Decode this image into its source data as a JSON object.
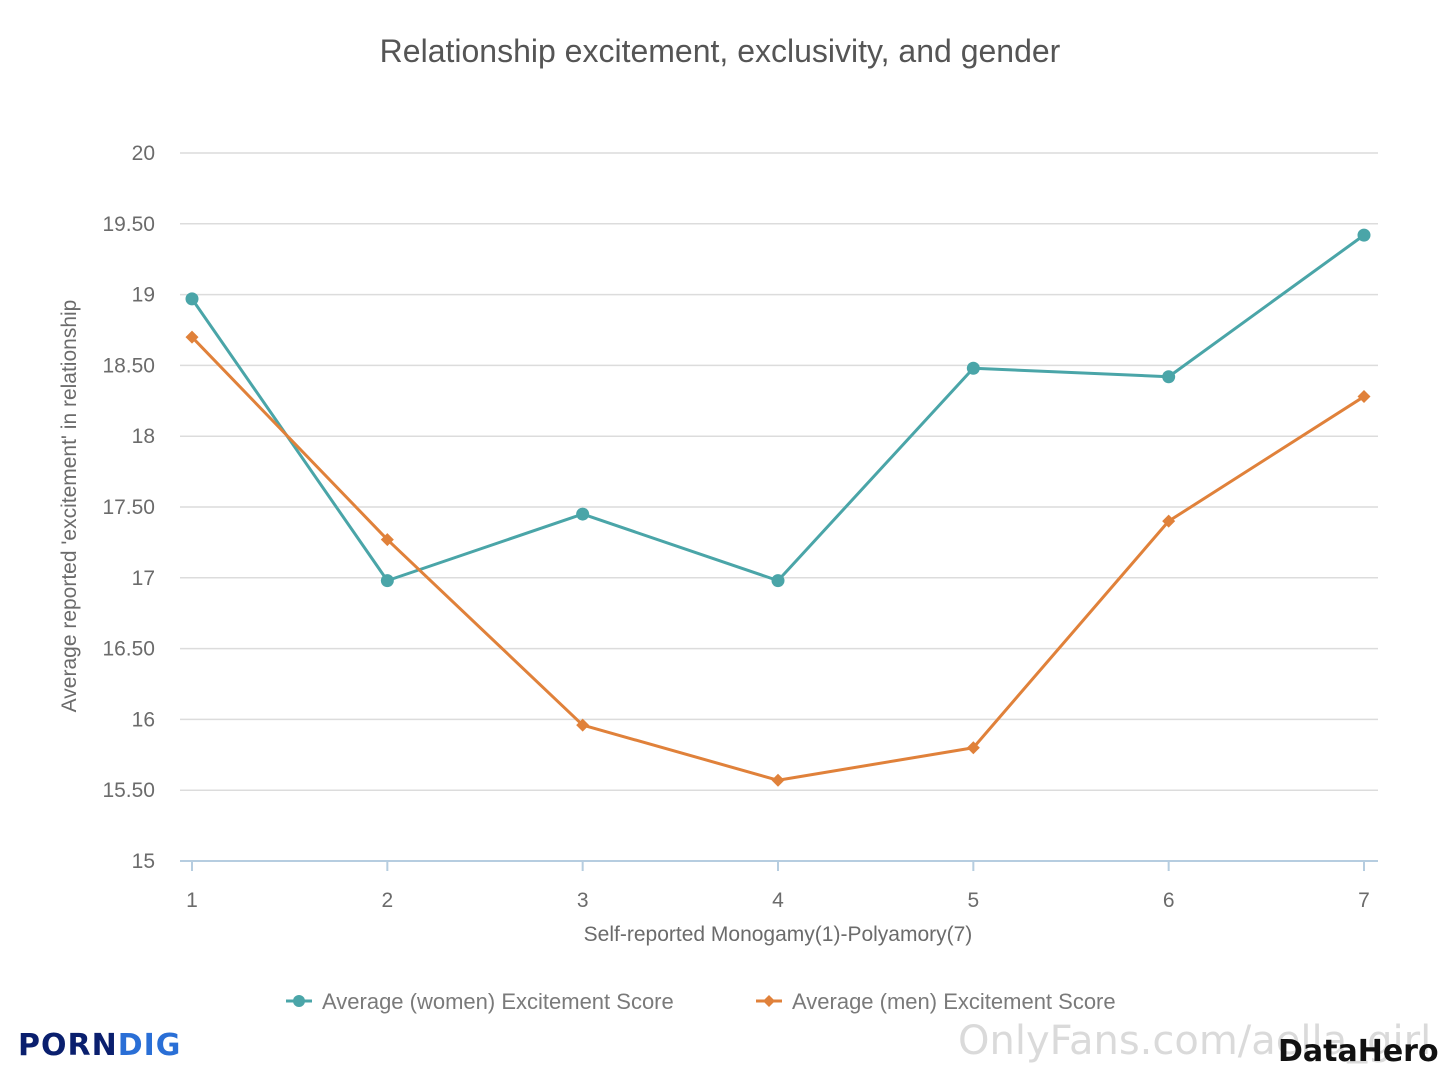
{
  "chart_data": {
    "type": "line",
    "title": "Relationship excitement, exclusivity, and gender",
    "xlabel": "Self-reported Monogamy(1)-Polyamory(7)",
    "ylabel": "Average reported 'excitement' in relationship",
    "categories": [
      "1",
      "2",
      "3",
      "4",
      "5",
      "6",
      "7"
    ],
    "ylim": [
      15,
      20
    ],
    "yticks": [
      {
        "value": 15,
        "label": "15"
      },
      {
        "value": 15.5,
        "label": "15.50"
      },
      {
        "value": 16,
        "label": "16"
      },
      {
        "value": 16.5,
        "label": "16.50"
      },
      {
        "value": 17,
        "label": "17"
      },
      {
        "value": 17.5,
        "label": "17.50"
      },
      {
        "value": 18,
        "label": "18"
      },
      {
        "value": 18.5,
        "label": "18.50"
      },
      {
        "value": 19,
        "label": "19"
      },
      {
        "value": 19.5,
        "label": "19.50"
      },
      {
        "value": 20,
        "label": "20"
      }
    ],
    "grid": true,
    "legend": "bottom",
    "series": [
      {
        "name": "Average (women) Excitement Score",
        "color": "#4aa5a8",
        "marker": "circle",
        "values": [
          18.97,
          16.98,
          17.45,
          16.98,
          18.48,
          18.42,
          19.42
        ]
      },
      {
        "name": "Average (men) Excitement Score",
        "color": "#e0813a",
        "marker": "diamond",
        "values": [
          18.7,
          17.27,
          15.96,
          15.57,
          15.8,
          17.4,
          18.28
        ]
      }
    ]
  },
  "watermarks": {
    "site_part1": "PORN",
    "site_part2": "DIG",
    "site_color_1": "#0a1f6e",
    "site_color_2": "#2a6fd6",
    "overlay_text": "OnlyFans.com/aella_girl",
    "brand": "DataHero"
  }
}
